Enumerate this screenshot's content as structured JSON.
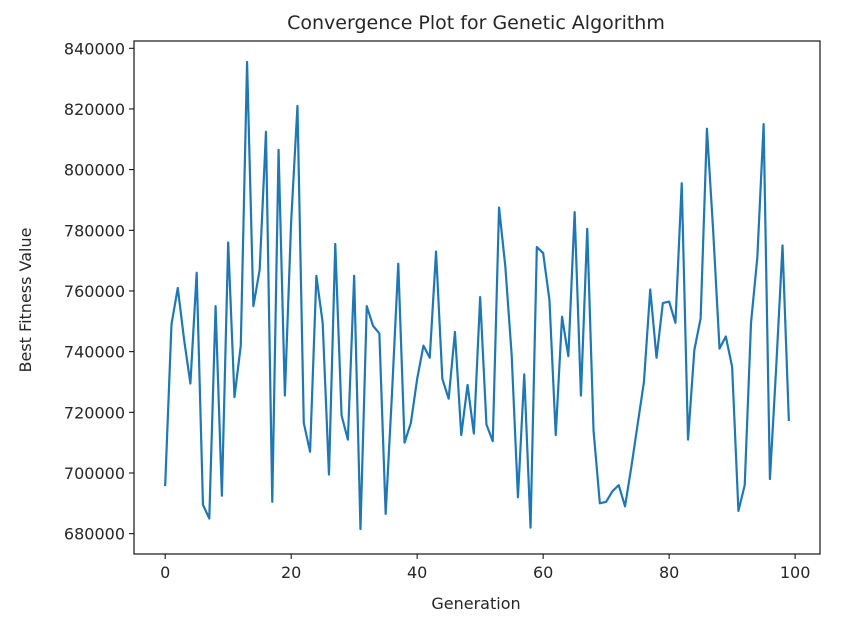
{
  "chart_data": {
    "type": "line",
    "title": "Convergence Plot for Genetic Algorithm",
    "xlabel": "Generation",
    "ylabel": "Best Fitness Value",
    "xlim": [
      -4.95,
      103.95
    ],
    "ylim": [
      673300,
      842400
    ],
    "xticks": [
      0,
      20,
      40,
      60,
      80,
      100
    ],
    "yticks": [
      680000,
      700000,
      720000,
      740000,
      760000,
      780000,
      800000,
      820000,
      840000
    ],
    "grid": false,
    "legend": "none",
    "series": [
      {
        "color": "#1f77b4",
        "x": [
          0,
          1,
          2,
          3,
          4,
          5,
          6,
          7,
          8,
          9,
          10,
          11,
          12,
          13,
          14,
          15,
          16,
          17,
          18,
          19,
          20,
          21,
          22,
          23,
          24,
          25,
          26,
          27,
          28,
          29,
          30,
          31,
          32,
          33,
          34,
          35,
          36,
          37,
          38,
          39,
          40,
          41,
          42,
          43,
          44,
          45,
          46,
          47,
          48,
          49,
          50,
          51,
          52,
          53,
          54,
          55,
          56,
          57,
          58,
          59,
          60,
          61,
          62,
          63,
          64,
          65,
          66,
          67,
          68,
          69,
          70,
          71,
          72,
          73,
          74,
          75,
          76,
          77,
          78,
          79,
          80,
          81,
          82,
          83,
          84,
          85,
          86,
          87,
          88,
          89,
          90,
          91,
          92,
          93,
          94,
          95,
          96,
          97,
          98,
          99
        ],
        "values": [
          696000,
          749000,
          761000,
          744000,
          729500,
          766000,
          689500,
          685000,
          755000,
          692500,
          776000,
          725000,
          742000,
          835500,
          755000,
          767000,
          812500,
          690500,
          806500,
          725500,
          783000,
          821000,
          716500,
          707000,
          765000,
          749500,
          699500,
          775500,
          719000,
          711000,
          765000,
          681500,
          755000,
          748500,
          746000,
          686500,
          726000,
          769000,
          710000,
          716500,
          731000,
          742000,
          738000,
          773000,
          731000,
          724500,
          746500,
          712500,
          729000,
          713000,
          758000,
          716000,
          710500,
          787500,
          768000,
          739000,
          692000,
          732500,
          682000,
          774500,
          772500,
          757000,
          712500,
          751500,
          738500,
          786000,
          725500,
          780500,
          714000,
          690000,
          690500,
          694000,
          696000,
          689000,
          702000,
          716000,
          730000,
          760500,
          738000,
          756000,
          756500,
          749500,
          795500,
          711000,
          740500,
          751000,
          813500,
          779500,
          741000,
          745000,
          735000,
          687500,
          696000,
          749500,
          771000,
          815000,
          698000,
          735000,
          775000,
          717500
        ]
      }
    ]
  }
}
